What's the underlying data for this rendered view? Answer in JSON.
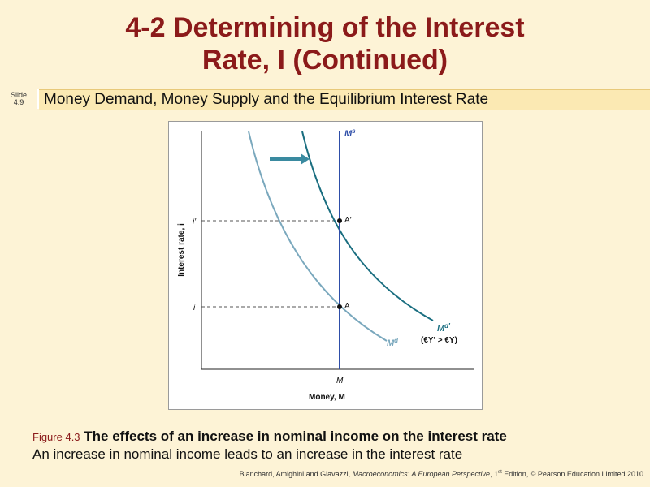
{
  "slide": {
    "title_line1": "4-2  Determining of the Interest",
    "title_line2": "Rate, I (Continued)",
    "slide_label_line1": "Slide",
    "slide_label_line2": "4.9",
    "subtitle": "Money Demand, Money Supply and the Equilibrium Interest Rate"
  },
  "caption": {
    "figure_number": "Figure 4.3",
    "figure_title": "The effects of an increase in nominal income on the interest rate",
    "description": "An increase in nominal income leads to an increase in the interest rate"
  },
  "credit": {
    "authors": "Blanchard, Amighini and Giavazzi, ",
    "book": "Macroeconomics: A European Perspective",
    "edition_pre": ", 1",
    "edition_sup": "st",
    "edition_post": " Edition, © Pearson Education Limited 2010"
  },
  "diagram": {
    "y_axis_label": "Interest rate, i",
    "x_axis_label": "Money, M",
    "tick_i_prime": "i′",
    "tick_i": "i",
    "tick_m": "M",
    "point_a_prime": "A′",
    "point_a": "A",
    "supply_label": "M",
    "supply_sup": "s",
    "demand_label": "M",
    "demand_sup": "d",
    "demand_new_label": "M",
    "demand_new_sup": "d′",
    "condition_label": "(€Y′ > €Y)",
    "colors": {
      "supply": "#2e4ea8",
      "demand_old": "#7aa8bd",
      "demand_new": "#1a6e80",
      "arrow": "#3a8aa0",
      "title": "#8b1a1a"
    }
  }
}
